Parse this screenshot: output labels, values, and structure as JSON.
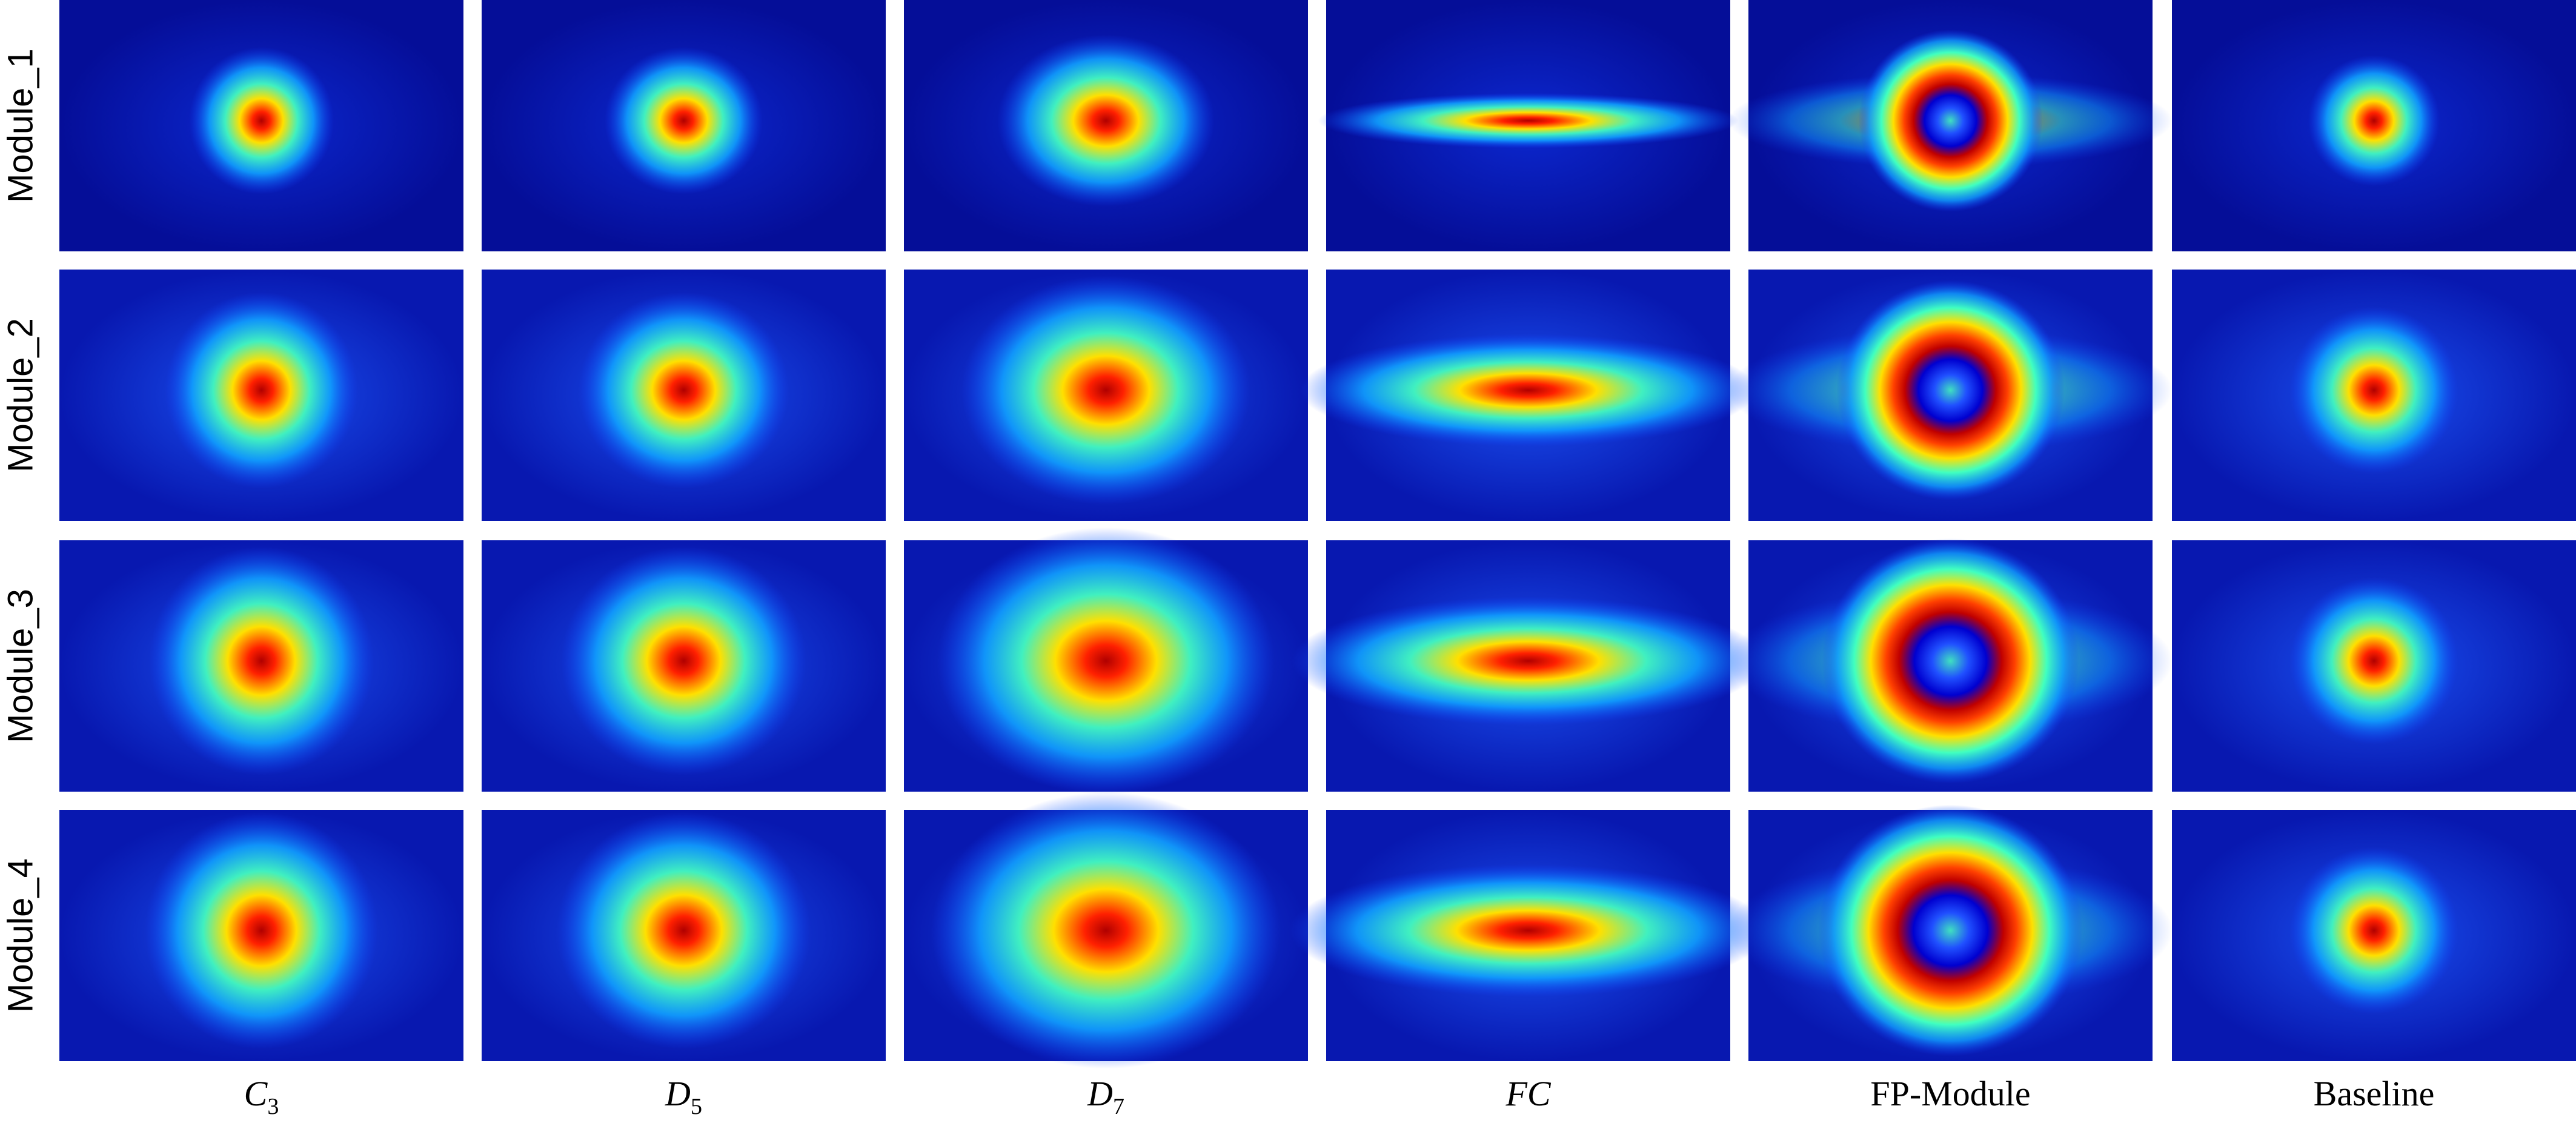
{
  "rows": [
    "Module_1",
    "Module_2",
    "Module_3",
    "Module_4"
  ],
  "columns": [
    {
      "base": "C",
      "sub": "3"
    },
    {
      "base": "D",
      "sub": "5"
    },
    {
      "base": "D",
      "sub": "7"
    },
    {
      "base": "FC"
    },
    {
      "base": "FP-Module"
    },
    {
      "base": "Baseline"
    }
  ]
}
